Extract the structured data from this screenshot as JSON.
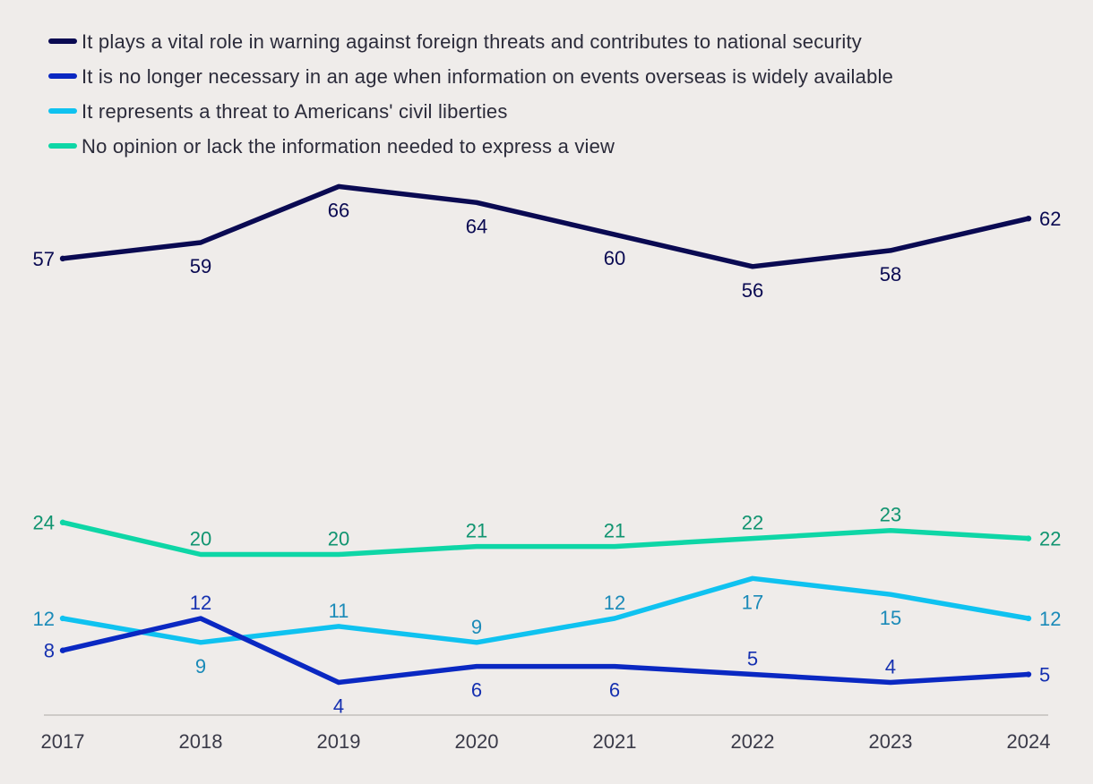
{
  "chart_data": {
    "type": "line",
    "title": "",
    "xlabel": "",
    "ylabel": "",
    "ylim": [
      0,
      70
    ],
    "grid": false,
    "legend_position": "top-left",
    "x": [
      "2017",
      "2018",
      "2019",
      "2020",
      "2021",
      "2022",
      "2023",
      "2024"
    ],
    "series": [
      {
        "name": "It plays a vital role in warning against foreign threats and contributes to national security",
        "color": "#0a0a52",
        "label_color": "#0a0a52",
        "values": [
          57,
          59,
          66,
          64,
          60,
          56,
          58,
          62
        ],
        "label_placement": [
          "left",
          "below",
          "below",
          "below",
          "below",
          "below",
          "below",
          "right"
        ]
      },
      {
        "name": "It is no longer necessary in an age when information on events overseas is widely available",
        "color": "#0a28c2",
        "label_color": "#1530b0",
        "values": [
          8,
          12,
          4,
          6,
          6,
          5,
          4,
          5
        ],
        "label_placement": [
          "left",
          "above",
          "below",
          "below",
          "below",
          "above",
          "above",
          "right"
        ]
      },
      {
        "name": "It represents a threat to Americans' civil liberties",
        "color": "#0fc2f0",
        "label_color": "#1a8ab8",
        "values": [
          12,
          9,
          11,
          9,
          12,
          17,
          15,
          12
        ],
        "label_placement": [
          "left",
          "below",
          "above",
          "above",
          "above",
          "below",
          "below",
          "right"
        ]
      },
      {
        "name": "No opinion or lack the information needed to express a view",
        "color": "#0ed6a6",
        "label_color": "#109470",
        "values": [
          24,
          20,
          20,
          21,
          21,
          22,
          23,
          22
        ],
        "label_placement": [
          "left",
          "above",
          "above",
          "above",
          "above",
          "above",
          "above",
          "right"
        ]
      }
    ]
  }
}
